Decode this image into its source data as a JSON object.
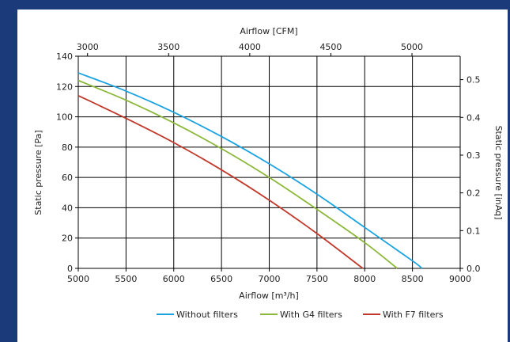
{
  "colors": {
    "background_frame": "#1b3a7a",
    "panel": "#ffffff",
    "grid": "#000000"
  },
  "chart_data": {
    "type": "line",
    "x_primary_label": "Airflow [m³/h]",
    "x_secondary_label": "Airflow [CFM]",
    "y_primary_label": "Static pressure [Pa]",
    "y_secondary_label": "Static pressure [inAq]",
    "xlim": [
      5000,
      9000
    ],
    "ylim": [
      0,
      140
    ],
    "x_ticks": [
      5000,
      5500,
      6000,
      6500,
      7000,
      7500,
      8000,
      8500,
      9000
    ],
    "y_ticks": [
      0,
      20,
      40,
      60,
      80,
      100,
      120,
      140
    ],
    "x2_ticks": [
      3000,
      3500,
      4000,
      4500,
      5000
    ],
    "y2_ticks": [
      "0.0",
      "0.1",
      "0.2",
      "0.3",
      "0.4",
      "0.5"
    ],
    "grid": true,
    "legend_position": "bottom",
    "series": [
      {
        "name": "Without filters",
        "color": "#1aa3e0",
        "x": [
          5000,
          5500,
          6000,
          6500,
          7000,
          7500,
          8000,
          8500,
          8600
        ],
        "y": [
          129,
          117,
          103,
          87,
          69,
          49,
          27,
          5,
          0
        ]
      },
      {
        "name": "With G4 filters",
        "color": "#8cb83a",
        "x": [
          5000,
          5500,
          6000,
          6500,
          7000,
          7500,
          8000,
          8340
        ],
        "y": [
          124,
          111,
          96,
          79,
          60,
          39,
          17,
          0
        ]
      },
      {
        "name": "With F7 filters",
        "color": "#c0392b",
        "x": [
          5000,
          5500,
          6000,
          6500,
          7000,
          7500,
          7980
        ],
        "y": [
          114,
          99,
          83,
          65,
          45,
          23,
          0
        ]
      }
    ]
  }
}
